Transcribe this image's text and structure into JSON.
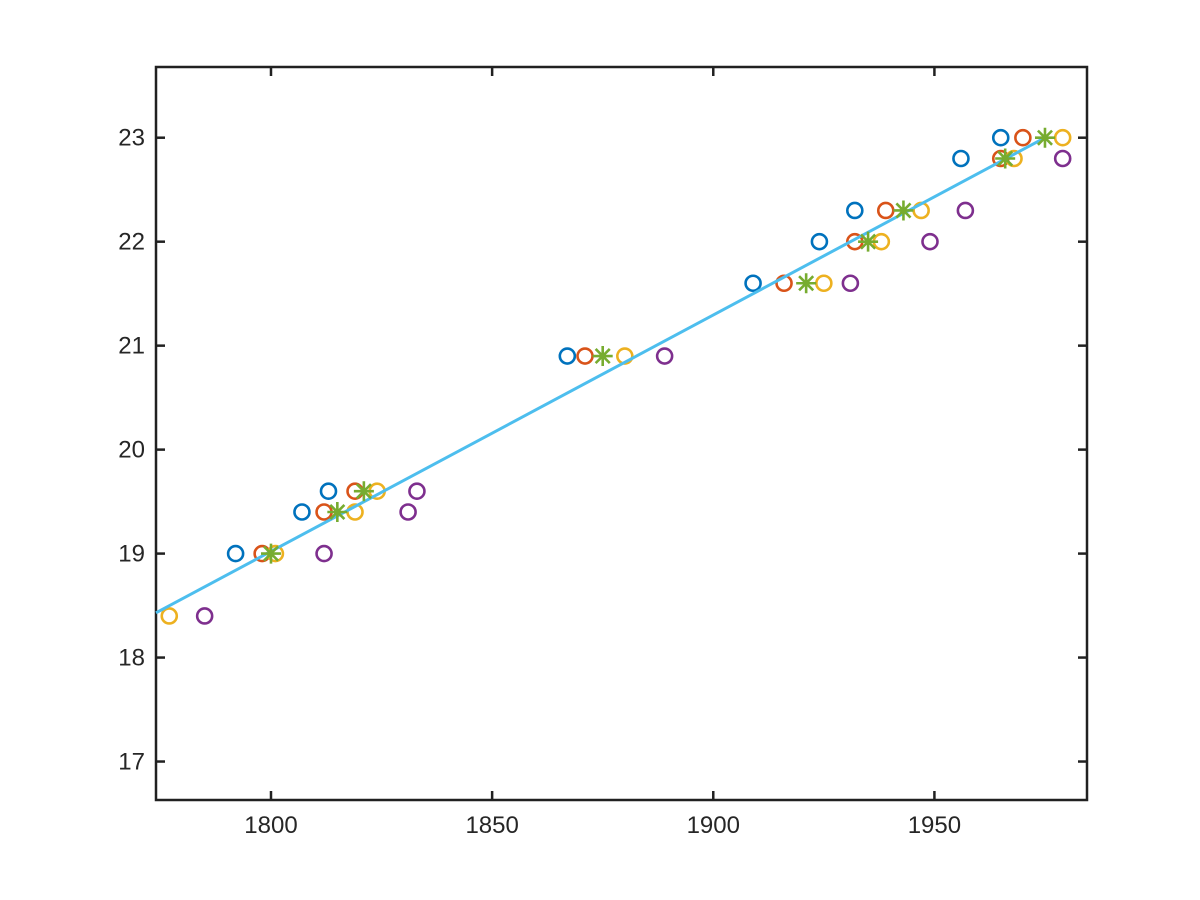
{
  "figure": {
    "background": "#ffffff",
    "axis_color": "#212121",
    "tick_label_color": "#262626"
  },
  "chart_data": {
    "type": "scatter",
    "title": "",
    "xlabel": "",
    "ylabel": "",
    "grid": false,
    "legend": null,
    "xlim": [
      1774,
      1984.5
    ],
    "ylim": [
      16.63,
      23.68
    ],
    "x_ticks": [
      1800,
      1850,
      1900,
      1950
    ],
    "y_ticks": [
      17,
      18,
      19,
      20,
      21,
      22,
      23
    ],
    "series": [
      {
        "name": "series-1-blue-circles",
        "marker": "circle",
        "color": "#0072BD",
        "points": [
          [
            1792,
            19.0
          ],
          [
            1807,
            19.4
          ],
          [
            1813,
            19.6
          ],
          [
            1867,
            20.9
          ],
          [
            1909,
            21.6
          ],
          [
            1924,
            22.0
          ],
          [
            1932,
            22.3
          ],
          [
            1956,
            22.8
          ],
          [
            1965,
            23.0
          ]
        ]
      },
      {
        "name": "series-2-orange-circles",
        "marker": "circle",
        "color": "#D95319",
        "points": [
          [
            1798,
            19.0
          ],
          [
            1812,
            19.4
          ],
          [
            1819,
            19.6
          ],
          [
            1871,
            20.9
          ],
          [
            1916,
            21.6
          ],
          [
            1932,
            22.0
          ],
          [
            1939,
            22.3
          ],
          [
            1965,
            22.8
          ],
          [
            1970,
            23.0
          ]
        ]
      },
      {
        "name": "series-3-yellow-circles",
        "marker": "circle",
        "color": "#EDB120",
        "points": [
          [
            1777,
            18.4
          ],
          [
            1801,
            19.0
          ],
          [
            1819,
            19.4
          ],
          [
            1824,
            19.6
          ],
          [
            1880,
            20.9
          ],
          [
            1925,
            21.6
          ],
          [
            1938,
            22.0
          ],
          [
            1947,
            22.3
          ],
          [
            1968,
            22.8
          ],
          [
            1979,
            23.0
          ]
        ]
      },
      {
        "name": "series-4-purple-circles",
        "marker": "circle",
        "color": "#7E2F8E",
        "points": [
          [
            1785,
            18.4
          ],
          [
            1812,
            19.0
          ],
          [
            1831,
            19.4
          ],
          [
            1833,
            19.6
          ],
          [
            1889,
            20.9
          ],
          [
            1931,
            21.6
          ],
          [
            1949,
            22.0
          ],
          [
            1957,
            22.3
          ],
          [
            1979,
            22.8
          ]
        ]
      },
      {
        "name": "series-5-green-asterisks",
        "marker": "asterisk",
        "color": "#77AC30",
        "points": [
          [
            1800,
            19.0
          ],
          [
            1815,
            19.4
          ],
          [
            1821,
            19.6
          ],
          [
            1875,
            20.9
          ],
          [
            1921,
            21.6
          ],
          [
            1935,
            22.0
          ],
          [
            1943,
            22.3
          ],
          [
            1966,
            22.8
          ],
          [
            1975,
            23.0
          ]
        ]
      }
    ],
    "fit_line": {
      "name": "fit-line",
      "color": "#4DBEEE",
      "from": [
        1774,
        18.43
      ],
      "to": [
        1975,
        23.0
      ]
    }
  }
}
